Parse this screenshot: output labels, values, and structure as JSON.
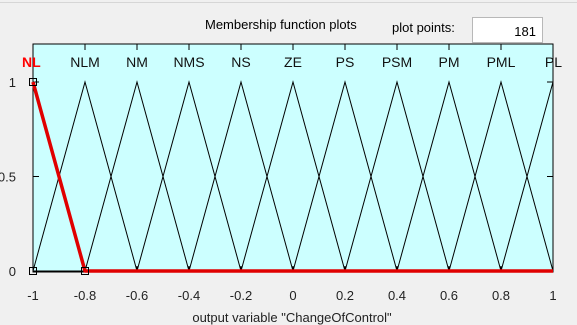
{
  "header": {
    "title": "Membership function plots",
    "plot_points_label": "plot points:",
    "plot_points_value": "181"
  },
  "plot": {
    "background": "#ccffff",
    "line_color": "#000000",
    "selected_color": "#e00000",
    "selected_index": 0,
    "x_range": [
      -1,
      1
    ],
    "y_range": [
      0,
      1
    ],
    "x_ticks": [
      "-1",
      "-0.8",
      "-0.6",
      "-0.4",
      "-0.2",
      "0",
      "0.2",
      "0.4",
      "0.6",
      "0.8",
      "1"
    ],
    "y_ticks": [
      "0",
      "0.5",
      "1"
    ],
    "xlabel": "output variable \"ChangeOfControl\"",
    "membership_functions": [
      {
        "name": "NL",
        "params": [
          -1.2,
          -1.0,
          -0.8
        ]
      },
      {
        "name": "NLM",
        "params": [
          -1.0,
          -0.8,
          -0.6
        ]
      },
      {
        "name": "NM",
        "params": [
          -0.8,
          -0.6,
          -0.4
        ]
      },
      {
        "name": "NMS",
        "params": [
          -0.6,
          -0.4,
          -0.2
        ]
      },
      {
        "name": "NS",
        "params": [
          -0.4,
          -0.2,
          0.0
        ]
      },
      {
        "name": "ZE",
        "params": [
          -0.2,
          0.0,
          0.2
        ]
      },
      {
        "name": "PS",
        "params": [
          0.0,
          0.2,
          0.4
        ]
      },
      {
        "name": "PSM",
        "params": [
          0.2,
          0.4,
          0.6
        ]
      },
      {
        "name": "PM",
        "params": [
          0.4,
          0.6,
          0.8
        ]
      },
      {
        "name": "PML",
        "params": [
          0.6,
          0.8,
          1.0
        ]
      },
      {
        "name": "PL",
        "params": [
          0.8,
          1.0,
          1.2
        ]
      }
    ]
  }
}
